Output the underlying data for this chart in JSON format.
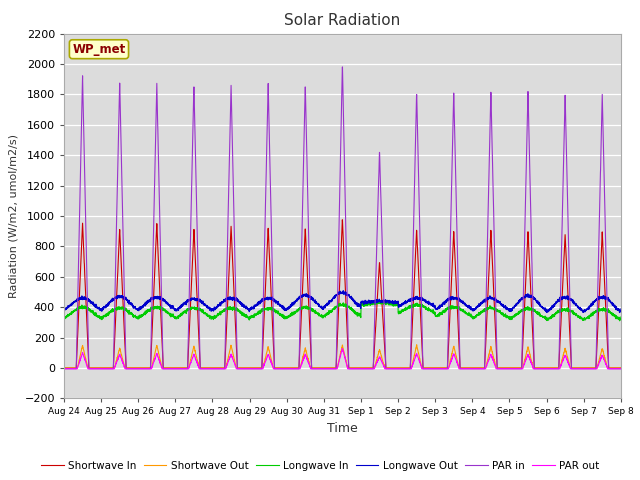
{
  "title": "Solar Radiation",
  "xlabel": "Time",
  "ylabel": "Radiation (W/m2, umol/m2/s)",
  "ylim": [
    -200,
    2200
  ],
  "yticks": [
    -200,
    0,
    200,
    400,
    600,
    800,
    1000,
    1200,
    1400,
    1600,
    1800,
    2000,
    2200
  ],
  "station_label": "WP_met",
  "plot_bg": "#dcdcdc",
  "fig_bg": "#ffffff",
  "series": [
    {
      "name": "Shortwave In",
      "color": "#cc0000"
    },
    {
      "name": "Shortwave Out",
      "color": "#ff9900"
    },
    {
      "name": "Longwave In",
      "color": "#00cc00"
    },
    {
      "name": "Longwave Out",
      "color": "#0000cc"
    },
    {
      "name": "PAR in",
      "color": "#9933cc"
    },
    {
      "name": "PAR out",
      "color": "#ff00ff"
    }
  ],
  "n_days": 15,
  "shortwave_in_peaks": [
    950,
    910,
    950,
    920,
    940,
    925,
    920,
    980,
    700,
    910,
    900,
    910,
    900,
    880,
    890
  ],
  "shortwave_out_peaks": [
    150,
    130,
    150,
    145,
    150,
    140,
    130,
    150,
    120,
    150,
    145,
    140,
    140,
    130,
    130
  ],
  "longwave_in_base": [
    330,
    330,
    335,
    330,
    330,
    330,
    335,
    345,
    415,
    365,
    340,
    330,
    325,
    320,
    320
  ],
  "longwave_in_peak": [
    400,
    395,
    400,
    395,
    395,
    392,
    400,
    415,
    430,
    415,
    400,
    395,
    390,
    385,
    385
  ],
  "longwave_out_base": [
    385,
    385,
    388,
    382,
    385,
    385,
    390,
    405,
    430,
    408,
    387,
    382,
    378,
    373,
    373
  ],
  "longwave_out_peak": [
    460,
    470,
    465,
    455,
    460,
    460,
    480,
    495,
    440,
    460,
    460,
    460,
    475,
    465,
    465
  ],
  "par_in_peaks": [
    1920,
    1890,
    1870,
    1865,
    1870,
    1870,
    1860,
    2000,
    1430,
    1820,
    1820,
    1820,
    1820,
    1800,
    1790
  ],
  "par_out_peaks": [
    100,
    90,
    95,
    90,
    90,
    90,
    90,
    130,
    75,
    95,
    95,
    90,
    90,
    85,
    85
  ],
  "day_labels": [
    "Aug 24",
    "Aug 25",
    "Aug 26",
    "Aug 27",
    "Aug 28",
    "Aug 29",
    "Aug 30",
    "Aug 31",
    "Sep 1",
    "Sep 2",
    "Sep 3",
    "Sep 4",
    "Sep 5",
    "Sep 6",
    "Sep 7",
    "Sep 8"
  ]
}
